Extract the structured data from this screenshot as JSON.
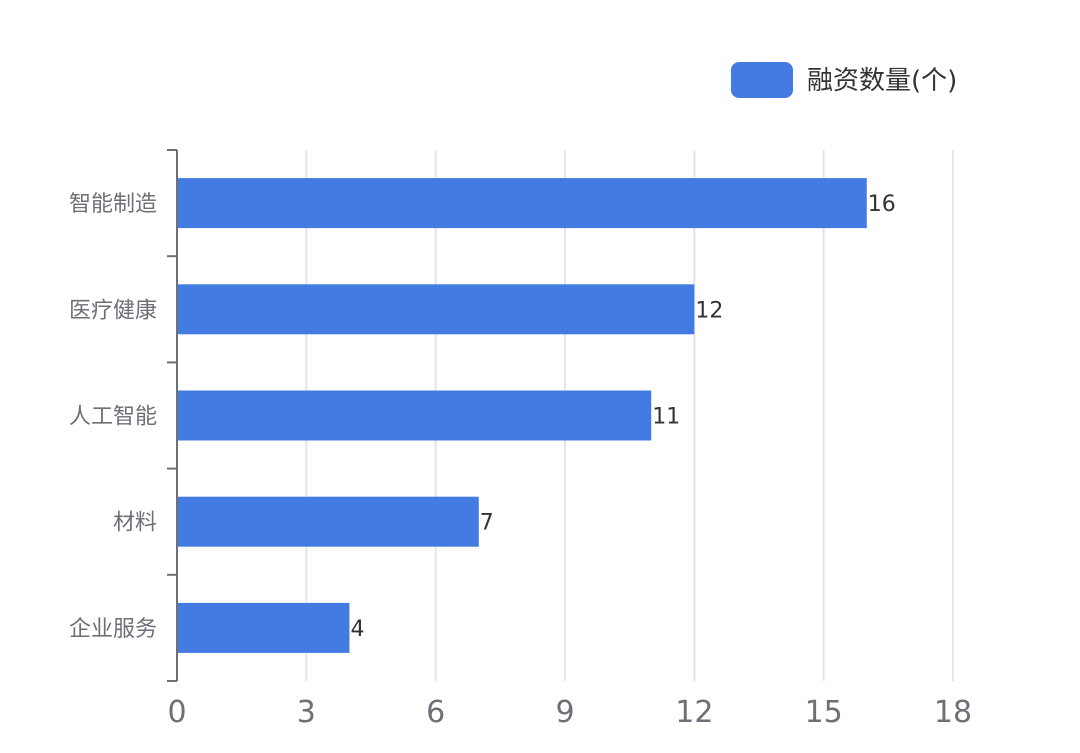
{
  "chart_data": {
    "type": "bar",
    "orientation": "horizontal",
    "categories": [
      "智能制造",
      "医疗健康",
      "人工智能",
      "材料",
      "企业服务"
    ],
    "series": [
      {
        "name": "融资数量(个)",
        "values": [
          16,
          12,
          11,
          7,
          4
        ],
        "color": "#447be2"
      }
    ],
    "xlim": [
      0,
      18
    ],
    "xticks": [
      "0",
      "3",
      "6",
      "9",
      "12",
      "15",
      "18"
    ],
    "grid": true,
    "legend_position": "top-right",
    "data_labels": true
  },
  "colors": {
    "bar": "#447be2",
    "grid": "#e0e6f1",
    "axis": "#6e7079",
    "label": "#6e7079",
    "value_label": "#333333"
  }
}
